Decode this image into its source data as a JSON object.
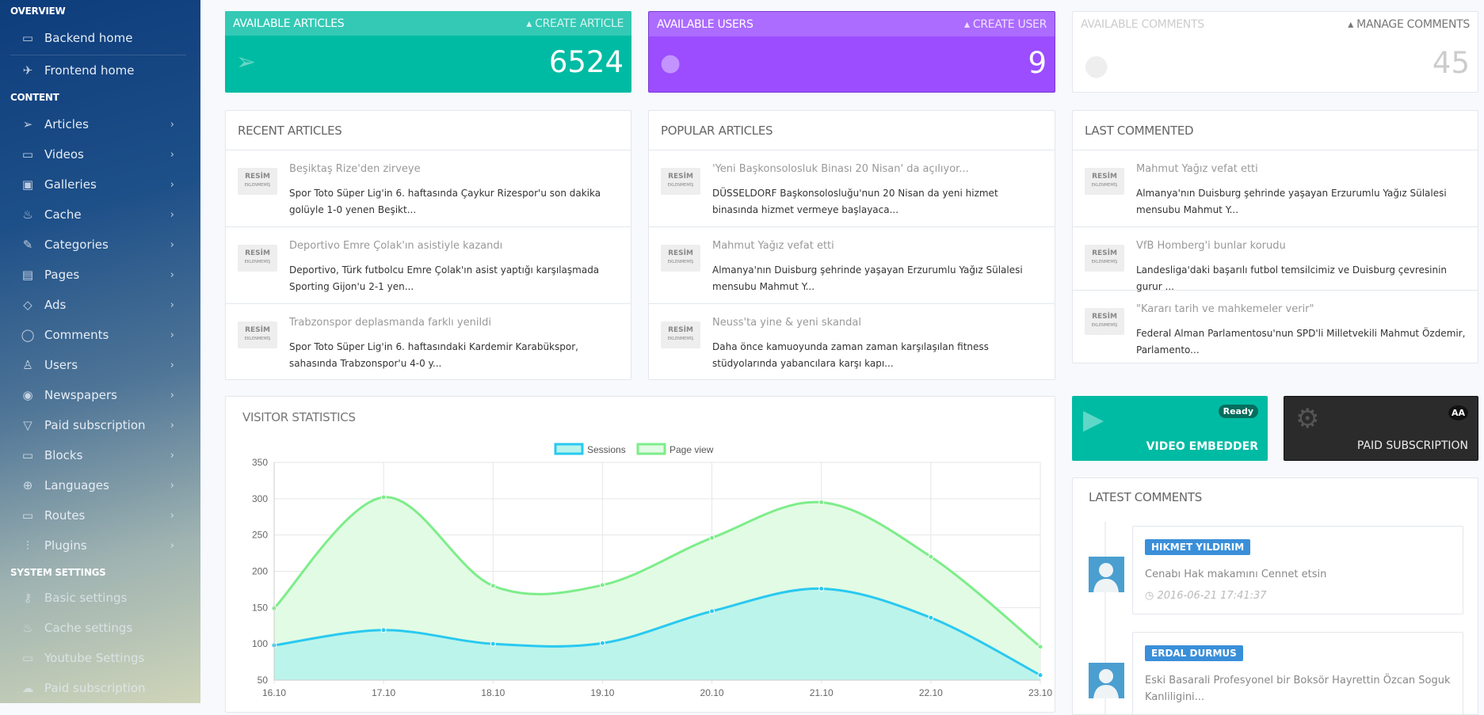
{
  "sidebar": {
    "sections": [
      "OVERVIEW",
      "CONTENT",
      "SYSTEM SETTINGS"
    ],
    "overview": [
      {
        "label": "Backend home",
        "icon": "monitor-icon"
      },
      {
        "label": "Frontend home",
        "icon": "rocket-icon"
      }
    ],
    "content": [
      {
        "label": "Articles",
        "icon": "paper-plane-icon"
      },
      {
        "label": "Videos",
        "icon": "video-camera-icon"
      },
      {
        "label": "Galleries",
        "icon": "picture-icon"
      },
      {
        "label": "Cache",
        "icon": "fire-icon"
      },
      {
        "label": "Categories",
        "icon": "pencil-icon"
      },
      {
        "label": "Pages",
        "icon": "newspaper-icon"
      },
      {
        "label": "Ads",
        "icon": "tag-icon"
      },
      {
        "label": "Comments",
        "icon": "speech-bubble-icon"
      },
      {
        "label": "Users",
        "icon": "user-icon"
      },
      {
        "label": "Newspapers",
        "icon": "eye-icon"
      },
      {
        "label": "Paid subscription",
        "icon": "cup-icon"
      },
      {
        "label": "Blocks",
        "icon": "wallet-icon"
      },
      {
        "label": "Languages",
        "icon": "globe-icon"
      },
      {
        "label": "Routes",
        "icon": "label-icon"
      },
      {
        "label": "Plugins",
        "icon": "sliders-icon"
      }
    ],
    "system": [
      {
        "label": "Basic settings",
        "icon": "key-icon"
      },
      {
        "label": "Cache settings",
        "icon": "fire-icon"
      },
      {
        "label": "Youtube Settings",
        "icon": "video-camera-icon"
      },
      {
        "label": "Paid subscription",
        "icon": "cloud-icon"
      }
    ]
  },
  "stats": {
    "articles": {
      "title": "AVAILABLE ARTICLES",
      "action": "CREATE ARTICLE",
      "value": "6524",
      "color": "#00bba3"
    },
    "users": {
      "title": "AVAILABLE USERS",
      "action": "CREATE USER",
      "value": "9",
      "color": "#9b4dff"
    },
    "comments": {
      "title": "AVAILABLE COMMENTS",
      "action": "MANAGE COMMENTS",
      "value": "45"
    }
  },
  "thumb": {
    "line1": "RESİM",
    "line2": "EKLENMEMİŞ"
  },
  "recent": {
    "title": "RECENT ARTICLES",
    "items": [
      {
        "title": "Beşiktaş Rize'den zirveye",
        "body": "Spor Toto Süper Lig'in 6. haftasında Çaykur Rizespor'u son dakika golüyle 1-0 yenen Beşikt..."
      },
      {
        "title": "Deportivo Emre Çolak'ın asistiyle kazandı",
        "body": "Deportivo, Türk futbolcu Emre Çolak'ın asist yaptığı karşılaşmada Sporting Gijon'u 2-1 yen..."
      },
      {
        "title": "Trabzonspor deplasmanda farklı yenildi",
        "body": "Spor Toto Süper Lig'in 6. haftasındaki Kardemir Karabükspor, sahasında Trabzonspor'u 4-0 y..."
      }
    ]
  },
  "popular": {
    "title": "POPULAR ARTICLES",
    "items": [
      {
        "title": "'Yeni Başkonsolosluk Binası 20 Nisan' da açılıyor...",
        "body": "DÜSSELDORF  Başkonsolosluğu'nun 20 Nisan da yeni hizmet binasında hizmet vermeye başlayaca..."
      },
      {
        "title": "Mahmut Yağız vefat etti",
        "body": "Almanya'nın Duisburg şehrinde yaşayan Erzurumlu Yağız Sülalesi mensubu Mahmut Y..."
      },
      {
        "title": "Neuss'ta yine & yeni skandal",
        "body": "Daha önce kamuoyunda zaman zaman karşılaşılan fitness stüdyolarında yabancılara karşı kapı..."
      }
    ]
  },
  "lastcommented": {
    "title": "LAST COMMENTED",
    "items": [
      {
        "title": "Mahmut Yağız vefat etti",
        "body": "Almanya'nın Duisburg şehrinde yaşayan Erzurumlu Yağız Sülalesi mensubu Mahmut Y..."
      },
      {
        "title": "VfB Homberg'i bunlar korudu",
        "body": "Landesliga'daki  başarılı futbol temsilcimiz ve Duisburg çevresinin gurur ..."
      },
      {
        "title": "\"Kararı tarih ve mahkemeler verir\"",
        "body": "Federal Alman Parlamentosu'nun SPD'li Milletvekili Mahmut Özdemir, Parlamento..."
      }
    ]
  },
  "tiles": {
    "video": {
      "label": "VIDEO EMBEDDER",
      "badge": "Ready",
      "color": "#00bba3"
    },
    "paid": {
      "label": "PAID SUBSCRIPTION",
      "badge": "AA",
      "color": "#2b2b2b"
    }
  },
  "latest": {
    "title": "LATEST COMMENTS",
    "items": [
      {
        "name": "HIKMET YILDIRIM",
        "text": "Cenabı Hak makamını Cennet etsin",
        "time": "2016-06-21 17:41:37"
      },
      {
        "name": "ERDAL DURMUS",
        "text": "Eski Basarali Profesyonel bir Boksör Hayrettin Özcan Soguk Kanliligini..."
      }
    ]
  },
  "visitor": {
    "title": "VISITOR STATISTICS"
  },
  "chart_data": {
    "type": "area",
    "title": "VISITOR STATISTICS",
    "categories": [
      "16.10",
      "17.10",
      "18.10",
      "19.10",
      "20.10",
      "21.10",
      "22.10",
      "23.10"
    ],
    "series": [
      {
        "name": "Sessions",
        "values": [
          98,
          119,
          100,
          101,
          145,
          176,
          136,
          57
        ],
        "color": "#29c9f0",
        "fill": "#b8f3eb"
      },
      {
        "name": "Page view",
        "values": [
          149,
          302,
          180,
          181,
          246,
          295,
          220,
          96
        ],
        "color": "#7ded8a",
        "fill": "#e2fbe4"
      }
    ],
    "ylim": [
      50,
      350
    ],
    "yticks": [
      50,
      100,
      150,
      200,
      250,
      300,
      350
    ],
    "grid": true,
    "legend": "top-center"
  }
}
